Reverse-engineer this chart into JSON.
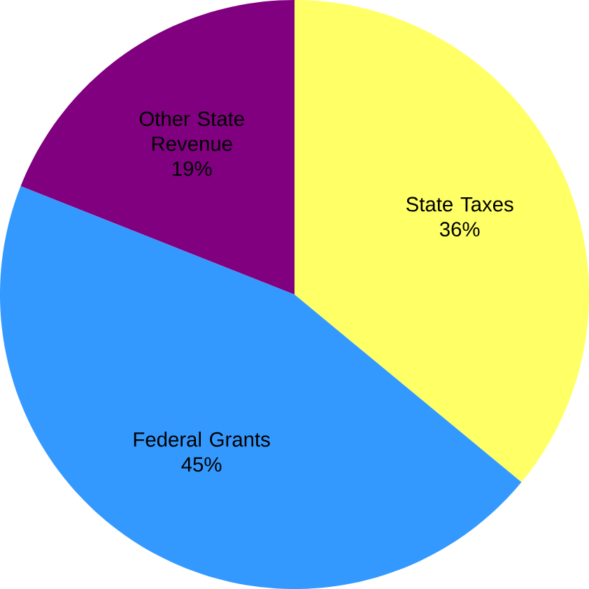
{
  "chart_data": {
    "type": "pie",
    "categories": [
      "State Taxes",
      "Federal Grants",
      "Other State Revenue"
    ],
    "values": [
      36,
      45,
      19
    ],
    "colors": [
      "#ffff66",
      "#3399ff",
      "#800080"
    ],
    "value_labels": [
      "36%",
      "45%",
      "19%"
    ]
  }
}
